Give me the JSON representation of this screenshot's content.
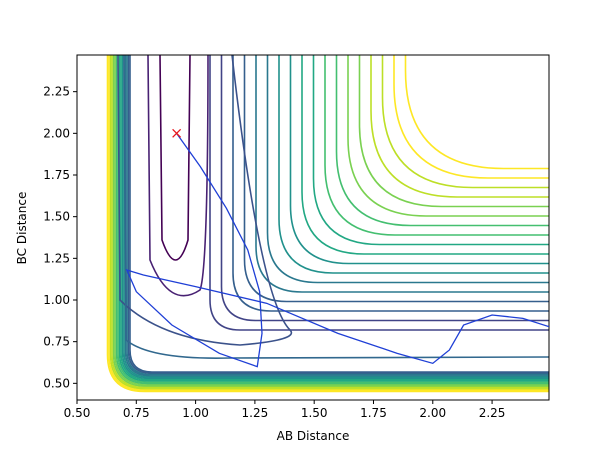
{
  "chart_data": {
    "type": "line",
    "xlabel": "AB Distance",
    "ylabel": "BC Distance",
    "xlim": [
      0.5,
      2.49
    ],
    "ylim": [
      0.4,
      2.47
    ],
    "xticks": [
      {
        "value": 0.5,
        "label": "0.50"
      },
      {
        "value": 0.75,
        "label": "0.75"
      },
      {
        "value": 1.0,
        "label": "1.00"
      },
      {
        "value": 1.25,
        "label": "1.25"
      },
      {
        "value": 1.5,
        "label": "1.50"
      },
      {
        "value": 1.75,
        "label": "1.75"
      },
      {
        "value": 2.0,
        "label": "2.00"
      },
      {
        "value": 2.25,
        "label": "2.25"
      }
    ],
    "yticks": [
      {
        "value": 0.5,
        "label": "0.50"
      },
      {
        "value": 0.75,
        "label": "0.75"
      },
      {
        "value": 1.0,
        "label": "1.00"
      },
      {
        "value": 1.25,
        "label": "1.25"
      },
      {
        "value": 1.5,
        "label": "1.50"
      },
      {
        "value": 1.75,
        "label": "1.75"
      },
      {
        "value": 2.0,
        "label": "2.00"
      },
      {
        "value": 2.25,
        "label": "2.25"
      }
    ],
    "x": [
      0.92,
      1.02,
      1.13,
      1.22,
      1.27,
      1.28,
      1.26,
      1.1,
      0.9,
      0.75,
      0.71,
      0.78,
      1.0,
      1.3,
      1.6,
      1.85,
      2.0,
      2.07,
      2.13,
      2.25,
      2.38,
      2.49
    ],
    "series": [
      {
        "color": "#1f3fd6",
        "values": [
          2.0,
          1.8,
          1.55,
          1.3,
          1.05,
          0.8,
          0.6,
          0.68,
          0.85,
          1.05,
          1.18,
          1.15,
          1.08,
          0.98,
          0.8,
          0.68,
          0.62,
          0.7,
          0.85,
          0.91,
          0.89,
          0.84
        ]
      }
    ],
    "start_marker": {
      "x": 0.92,
      "y": 2.0,
      "color": "#e8141a"
    }
  }
}
